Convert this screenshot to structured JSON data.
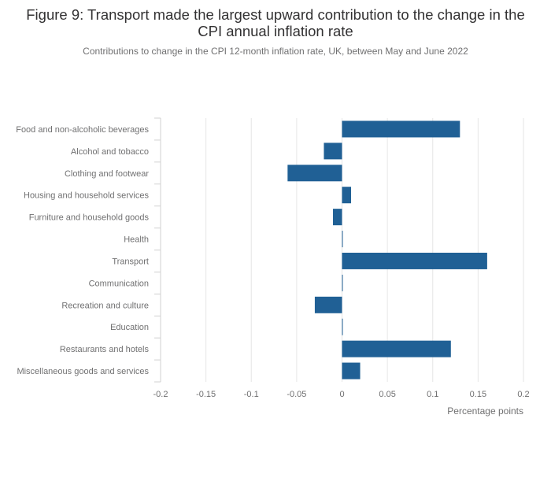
{
  "chart_data": {
    "type": "bar",
    "orientation": "horizontal",
    "title": "Figure 9: Transport made the largest upward contribution to the change in the CPI annual inflation rate",
    "subtitle": "Contributions to change in the CPI 12-month inflation rate, UK, between May and June 2022",
    "xlabel": "Percentage points",
    "ylabel": "",
    "xlim": [
      -0.2,
      0.2
    ],
    "xticks": [
      -0.2,
      -0.15,
      -0.1,
      -0.05,
      0,
      0.05,
      0.1,
      0.15,
      0.2
    ],
    "xtick_labels": [
      "-0.2",
      "-0.15",
      "-0.1",
      "-0.05",
      "0",
      "0.05",
      "0.1",
      "0.15",
      "0.2"
    ],
    "grid": true,
    "bar_color": "#206095",
    "categories": [
      "Food and non-alcoholic beverages",
      "Alcohol and tobacco",
      "Clothing and footwear",
      "Housing and household services",
      "Furniture and household goods",
      "Health",
      "Transport",
      "Communication",
      "Recreation and culture",
      "Education",
      "Restaurants and hotels",
      "Miscellaneous goods and services"
    ],
    "values": [
      0.13,
      -0.02,
      -0.06,
      0.01,
      -0.01,
      0.0,
      0.16,
      0.0,
      -0.03,
      0.0,
      0.12,
      0.02
    ]
  }
}
